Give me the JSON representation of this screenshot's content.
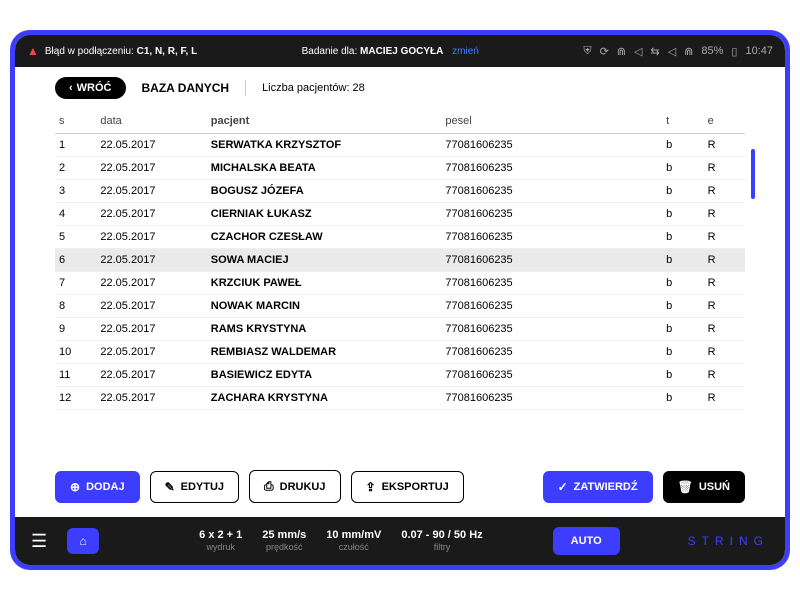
{
  "colors": {
    "accent": "#3d3dff",
    "dark": "#1a1a1a",
    "warn": "#ff4444"
  },
  "topbar": {
    "error_prefix": "Błąd w podłączeniu:",
    "error_codes": "C1, N, R, F, L",
    "center_prefix": "Badanie dla:",
    "center_name": "MACIEJ GOCYŁA",
    "zmien": "zmień",
    "battery": "85%",
    "time": "10:47"
  },
  "nav": {
    "back": "WRÓĆ",
    "title": "BAZA DANYCH",
    "count_label": "Liczba pacjentów: 28"
  },
  "table": {
    "headers": {
      "s": "s",
      "data": "data",
      "patient": "pacjent",
      "pesel": "pesel",
      "t": "t",
      "e": "e"
    },
    "rows": [
      {
        "s": "1",
        "data": "22.05.2017",
        "patient": "SERWATKA KRZYSZTOF",
        "pesel": "77081606235",
        "t": "b",
        "e": "R",
        "selected": false
      },
      {
        "s": "2",
        "data": "22.05.2017",
        "patient": "MICHALSKA BEATA",
        "pesel": "77081606235",
        "t": "b",
        "e": "R",
        "selected": false
      },
      {
        "s": "3",
        "data": "22.05.2017",
        "patient": "BOGUSZ JÓZEFA",
        "pesel": "77081606235",
        "t": "b",
        "e": "R",
        "selected": false
      },
      {
        "s": "4",
        "data": "22.05.2017",
        "patient": "CIERNIAK ŁUKASZ",
        "pesel": "77081606235",
        "t": "b",
        "e": "R",
        "selected": false
      },
      {
        "s": "5",
        "data": "22.05.2017",
        "patient": "CZACHOR CZESŁAW",
        "pesel": "77081606235",
        "t": "b",
        "e": "R",
        "selected": false
      },
      {
        "s": "6",
        "data": "22.05.2017",
        "patient": "SOWA MACIEJ",
        "pesel": "77081606235",
        "t": "b",
        "e": "R",
        "selected": true
      },
      {
        "s": "7",
        "data": "22.05.2017",
        "patient": "KRZCIUK PAWEŁ",
        "pesel": "77081606235",
        "t": "b",
        "e": "R",
        "selected": false
      },
      {
        "s": "8",
        "data": "22.05.2017",
        "patient": "NOWAK MARCIN",
        "pesel": "77081606235",
        "t": "b",
        "e": "R",
        "selected": false
      },
      {
        "s": "9",
        "data": "22.05.2017",
        "patient": "RAMS KRYSTYNA",
        "pesel": "77081606235",
        "t": "b",
        "e": "R",
        "selected": false
      },
      {
        "s": "10",
        "data": "22.05.2017",
        "patient": "REMBIASZ WALDEMAR",
        "pesel": "77081606235",
        "t": "b",
        "e": "R",
        "selected": false
      },
      {
        "s": "11",
        "data": "22.05.2017",
        "patient": "BASIEWICZ EDYTA",
        "pesel": "77081606235",
        "t": "b",
        "e": "R",
        "selected": false
      },
      {
        "s": "12",
        "data": "22.05.2017",
        "patient": "ZACHARA KRYSTYNA",
        "pesel": "77081606235",
        "t": "b",
        "e": "R",
        "selected": false
      }
    ]
  },
  "actions": {
    "add": "DODAJ",
    "edit": "EDYTUJ",
    "print": "DRUKUJ",
    "export": "EKSPORTUJ",
    "confirm": "ZATWIERDŹ",
    "delete": "USUŃ"
  },
  "bottom": {
    "m1": {
      "v": "6 x 2 + 1",
      "l": "wydruk"
    },
    "m2": {
      "v": "25 mm/s",
      "l": "prędkość"
    },
    "m3": {
      "v": "10 mm/mV",
      "l": "czułość"
    },
    "m4": {
      "v": "0.07 - 90 / 50 Hz",
      "l": "filtry"
    },
    "auto": "AUTO",
    "brand": "STRING"
  }
}
